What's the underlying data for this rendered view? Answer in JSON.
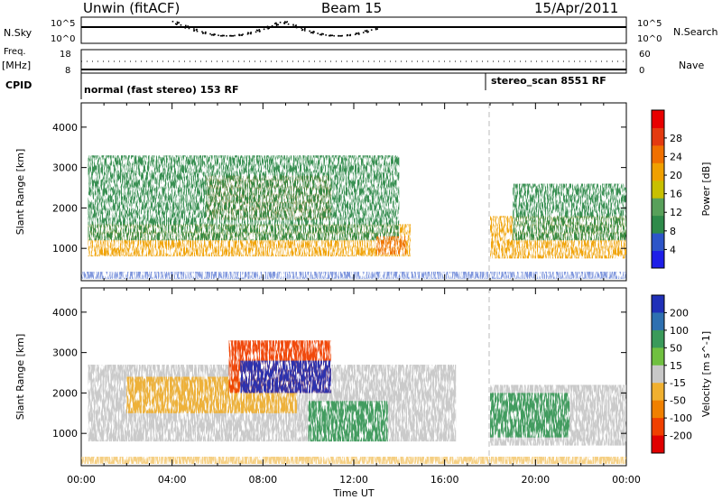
{
  "header": {
    "station": "Unwin (fitACF)",
    "beam": "Beam 15",
    "date": "15/Apr/2011"
  },
  "summary_panels": {
    "nsky_label": "N.Sky",
    "nsearch_label": "N.Search",
    "nsky_ticks": [
      "10^5",
      "10^0"
    ],
    "nsearch_ticks": [
      "10^5",
      "10^0"
    ],
    "freq_label": "Freq.",
    "freq_unit": "[MHz]",
    "freq_ticks": [
      "18",
      "8"
    ],
    "nave_label": "Nave",
    "nave_ticks": [
      "60",
      "0"
    ],
    "cpid_label": "CPID",
    "cpid_segments": [
      {
        "label": "normal (fast stereo) 153 RF",
        "start_hour": 0
      },
      {
        "label": "stereo_scan 8551 RF",
        "start_hour": 18
      }
    ]
  },
  "chart_data": [
    {
      "type": "heatmap",
      "title": "",
      "xlabel": "",
      "ylabel": "Slant Range [km]",
      "xlim": [
        0,
        24
      ],
      "ylim": [
        200,
        4600
      ],
      "yticks": [
        "1000",
        "2000",
        "3000",
        "4000"
      ],
      "colorbar": {
        "label": "Power [dB]",
        "ticks": [
          "4",
          "8",
          "12",
          "16",
          "20",
          "24",
          "28"
        ],
        "colors": [
          "#1e1ee8",
          "#2d55c8",
          "#2e8a4a",
          "#58a05a",
          "#c8c000",
          "#f0a000",
          "#f07000",
          "#e43a10",
          "#e80000"
        ]
      },
      "regions": [
        {
          "hours": [
            0.3,
            14.5
          ],
          "range_km": [
            800,
            1600
          ],
          "level_db": 20
        },
        {
          "hours": [
            5.5,
            11.0
          ],
          "range_km": [
            1700,
            2800
          ],
          "level_db": 22
        },
        {
          "hours": [
            0.3,
            14.0
          ],
          "range_km": [
            1200,
            3300
          ],
          "level_db": 8
        },
        {
          "hours": [
            13.0,
            14.3
          ],
          "range_km": [
            850,
            1300
          ],
          "level_db": 22
        },
        {
          "hours": [
            18.0,
            24.0
          ],
          "range_km": [
            750,
            1800
          ],
          "level_db": 20
        },
        {
          "hours": [
            19.0,
            24.0
          ],
          "range_km": [
            1200,
            2600
          ],
          "level_db": 8
        }
      ]
    },
    {
      "type": "heatmap",
      "title": "",
      "xlabel": "Time UT",
      "ylabel": "Slant Range [km]",
      "xlim": [
        0,
        24
      ],
      "ylim": [
        200,
        4600
      ],
      "xticks": [
        "00:00",
        "04:00",
        "08:00",
        "12:00",
        "16:00",
        "20:00",
        "00:00"
      ],
      "yticks": [
        "1000",
        "2000",
        "3000",
        "4000"
      ],
      "colorbar": {
        "label": "Velocity [m s^-1]",
        "ticks": [
          "200",
          "100",
          "50",
          "15",
          "-15",
          "-50",
          "-100",
          "-200"
        ],
        "colors": [
          "#2030b8",
          "#2e70b0",
          "#3a9a5a",
          "#70c040",
          "#c8c8c8",
          "#f0b030",
          "#f08000",
          "#f04000",
          "#e00000"
        ]
      },
      "regions": [
        {
          "hours": [
            0.3,
            16.5
          ],
          "range_km": [
            800,
            2700
          ],
          "velocity_mps": 0
        },
        {
          "hours": [
            2.0,
            9.5
          ],
          "range_km": [
            1500,
            2400
          ],
          "velocity_mps": -50
        },
        {
          "hours": [
            6.5,
            11.0
          ],
          "range_km": [
            2000,
            3300
          ],
          "velocity_mps": -150
        },
        {
          "hours": [
            7.0,
            11.0
          ],
          "range_km": [
            2000,
            2800
          ],
          "velocity_mps": 200
        },
        {
          "hours": [
            10.0,
            13.5
          ],
          "range_km": [
            800,
            1800
          ],
          "velocity_mps": 40
        },
        {
          "hours": [
            18.0,
            24.0
          ],
          "range_km": [
            700,
            2200
          ],
          "velocity_mps": 0
        },
        {
          "hours": [
            18.0,
            21.5
          ],
          "range_km": [
            900,
            2000
          ],
          "velocity_mps": 40
        }
      ]
    }
  ]
}
